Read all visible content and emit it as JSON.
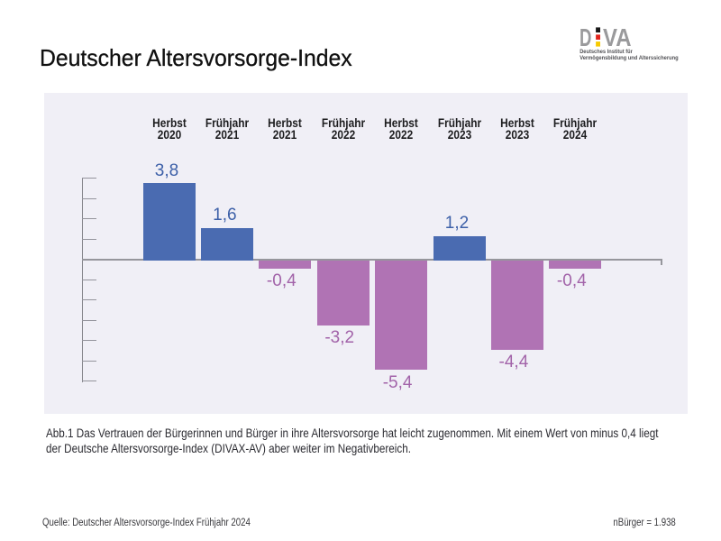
{
  "page": {
    "title": "Deutscher Altersvorsorge-Index"
  },
  "logo": {
    "letter_d": "D",
    "letters_va": "VA",
    "letters_color": "#9a9a9c",
    "flag_square_colors": [
      "#181818",
      "#e2251c",
      "#f7ca00"
    ],
    "subtitle_line1": "Deutsches Institut für",
    "subtitle_line2": "Vermögensbildung und Alterssicherung",
    "subtitle_color": "#515155"
  },
  "chart_data": {
    "type": "bar",
    "title": "Deutscher Altersvorsorge-Index",
    "categories": [
      "Herbst 2020",
      "Frühjahr 2021",
      "Herbst 2021",
      "Frühjahr 2022",
      "Herbst 2022",
      "Frühjahr 2023",
      "Herbst 2023",
      "Frühjahr 2024"
    ],
    "values": [
      3.8,
      1.6,
      -0.4,
      -3.2,
      -5.4,
      1.2,
      -4.4,
      -0.4
    ],
    "value_labels": [
      "3,8",
      "1,6",
      "-0,4",
      "-3,2",
      "-5,4",
      "1,2",
      "-4,4",
      "-0,4"
    ],
    "xlabel": "",
    "ylabel": "",
    "ylim": [
      -6,
      4
    ],
    "y_tick_step": 1,
    "y_tick_labels_visible": false,
    "grid": false,
    "legend": false,
    "colors": {
      "bar_positive": "#4a6bb1",
      "bar_negative": "#b073b4",
      "label_positive": "#3d60a8",
      "label_negative": "#a263a9",
      "plot_background": "#f0eff6",
      "axis": "#85858b",
      "tick": "#94949c",
      "zero_line": "#96969c"
    }
  },
  "caption": {
    "text": "Abb.1 Das Vertrauen der Bürgerinnen und Bürger in ihre Altersvorsorge hat leicht zugenommen. Mit einem Wert von minus 0,4 liegt der Deutsche Altersvorsorge-Index (DIVAX-AV) aber weiter im Negativbereich."
  },
  "footer": {
    "source": "Quelle: Deutscher Altersvorsorge-Index Frühjahr 2024",
    "sample": "nBürger = 1.938"
  }
}
